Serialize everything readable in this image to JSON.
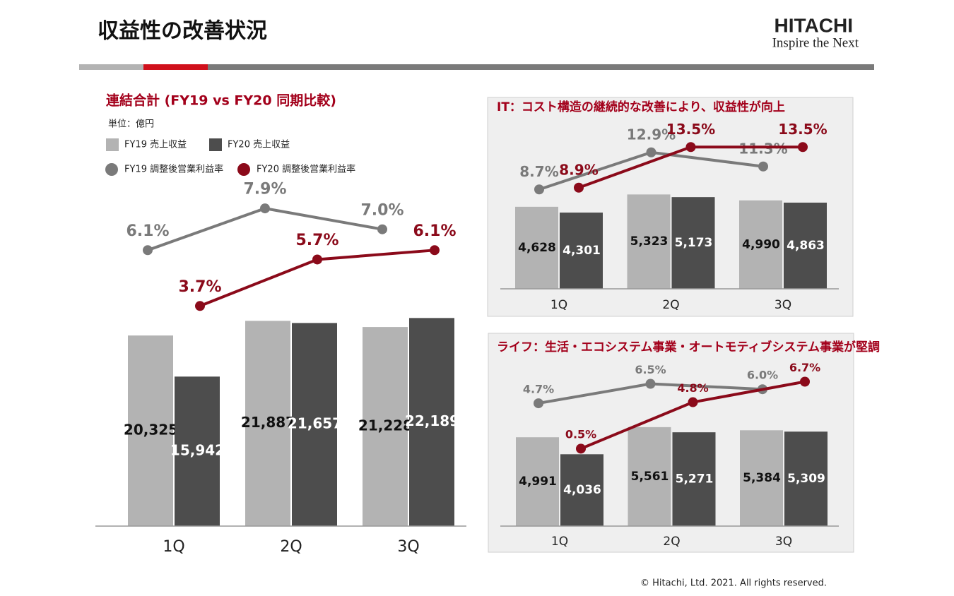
{
  "header": {
    "title": "収益性の改善状況",
    "logo": "HITACHI",
    "tagline": "Inspire the Next"
  },
  "footer": "© Hitachi, Ltd. 2021. All rights reserved.",
  "chart_data": [
    {
      "type": "bar-line",
      "title": "連結合計 (FY19 vs FY20 同期比較)",
      "unit": "単位：億円",
      "categories": [
        "1Q",
        "2Q",
        "3Q"
      ],
      "series": [
        {
          "name": "FY19 売上収益",
          "type": "bar",
          "color": "#b3b3b3",
          "values": [
            20325,
            21887,
            21228
          ],
          "value_labels": [
            "20,325",
            "21,887",
            "21,228"
          ]
        },
        {
          "name": "FY20 売上収益",
          "type": "bar",
          "color": "#4d4d4d",
          "values": [
            15942,
            21657,
            22189
          ],
          "value_labels": [
            "15,942",
            "21,657",
            "22,189"
          ]
        },
        {
          "name": "FY19 調整後営業利益率",
          "type": "line",
          "color": "#7a7a7a",
          "values": [
            6.1,
            7.9,
            7.0
          ],
          "value_labels": [
            "6.1%",
            "7.9%",
            "7.0%"
          ]
        },
        {
          "name": "FY20 調整後営業利益率",
          "type": "line",
          "color": "#8b0a1a",
          "values": [
            3.7,
            5.7,
            6.1
          ],
          "value_labels": [
            "3.7%",
            "5.7%",
            "6.1%"
          ]
        }
      ]
    },
    {
      "type": "bar-line",
      "title": "IT：コスト構造の継続的な改善により、収益性が向上",
      "categories": [
        "1Q",
        "2Q",
        "3Q"
      ],
      "series": [
        {
          "type": "bar",
          "color": "#b3b3b3",
          "values": [
            4628,
            5323,
            4990
          ],
          "value_labels": [
            "4,628",
            "5,323",
            "4,990"
          ]
        },
        {
          "type": "bar",
          "color": "#4d4d4d",
          "values": [
            4301,
            5173,
            4863
          ],
          "value_labels": [
            "4,301",
            "5,173",
            "4,863"
          ]
        },
        {
          "type": "line",
          "color": "#7a7a7a",
          "values": [
            8.7,
            12.9,
            11.3
          ],
          "value_labels": [
            "8.7%",
            "12.9%",
            "11.3%"
          ]
        },
        {
          "type": "line",
          "color": "#8b0a1a",
          "values": [
            8.9,
            13.5,
            13.5
          ],
          "value_labels": [
            "8.9%",
            "13.5%",
            "13.5%"
          ]
        }
      ]
    },
    {
      "type": "bar-line",
      "title": "ライフ：生活・エコシステム事業・オートモティブシステム事業が堅調",
      "categories": [
        "1Q",
        "2Q",
        "3Q"
      ],
      "series": [
        {
          "type": "bar",
          "color": "#b3b3b3",
          "values": [
            4991,
            5561,
            5384
          ],
          "value_labels": [
            "4,991",
            "5,561",
            "5,384"
          ]
        },
        {
          "type": "bar",
          "color": "#4d4d4d",
          "values": [
            4036,
            5271,
            5309
          ],
          "value_labels": [
            "4,036",
            "5,271",
            "5,309"
          ]
        },
        {
          "type": "line",
          "color": "#7a7a7a",
          "values": [
            4.7,
            6.5,
            6.0
          ],
          "value_labels": [
            "4.7%",
            "6.5%",
            "6.0%"
          ]
        },
        {
          "type": "line",
          "color": "#8b0a1a",
          "values": [
            0.5,
            4.8,
            6.7
          ],
          "value_labels": [
            "0.5%",
            "4.8%",
            "6.7%"
          ]
        }
      ]
    }
  ]
}
